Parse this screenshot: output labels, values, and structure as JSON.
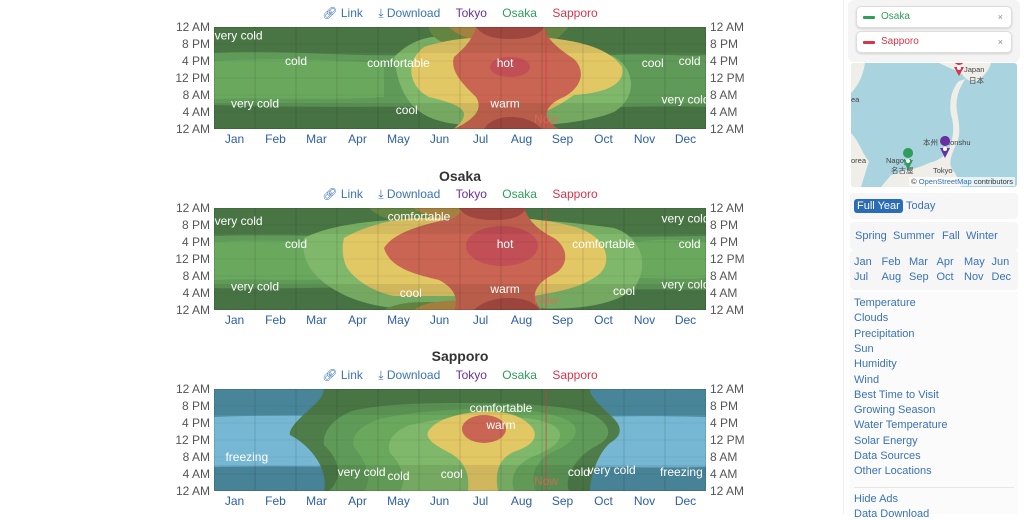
{
  "header_links": {
    "link": "Link",
    "download": "Download"
  },
  "cities": [
    "Tokyo",
    "Osaka",
    "Sapporo"
  ],
  "colors": {
    "tokyo": "#6a2f9e",
    "osaka": "#2e9e5b",
    "sapporo": "#d9344a",
    "link": "#3a72b8",
    "now": "#d9344a"
  },
  "y_axis_labels": [
    "12 AM",
    "8 PM",
    "4 PM",
    "12 PM",
    "8 AM",
    "4 AM",
    "12 AM"
  ],
  "months": [
    "Jan",
    "Feb",
    "Mar",
    "Apr",
    "May",
    "Jun",
    "Jul",
    "Aug",
    "Sep",
    "Oct",
    "Nov",
    "Dec"
  ],
  "now_label": "Now",
  "chart_data": [
    {
      "type": "heatmap",
      "title": "",
      "city": "Tokyo",
      "xlabel": "",
      "ylabel": "",
      "now_month_position": 8.1,
      "band_labels": [
        {
          "text": "very cold",
          "month": 0.6,
          "hour": 22
        },
        {
          "text": "cold",
          "month": 2.0,
          "hour": 16
        },
        {
          "text": "comfortable",
          "month": 4.5,
          "hour": 15.5
        },
        {
          "text": "hot",
          "month": 7.1,
          "hour": 15.5
        },
        {
          "text": "cool",
          "month": 10.7,
          "hour": 15.5
        },
        {
          "text": "cold",
          "month": 11.6,
          "hour": 16
        },
        {
          "text": "very cold",
          "month": 1.0,
          "hour": 6
        },
        {
          "text": "cool",
          "month": 4.7,
          "hour": 4.5
        },
        {
          "text": "warm",
          "month": 7.1,
          "hour": 6
        },
        {
          "text": "very cold",
          "month": 11.5,
          "hour": 7
        }
      ]
    },
    {
      "type": "heatmap",
      "title": "Osaka",
      "city": "Osaka",
      "xlabel": "",
      "ylabel": "",
      "now_month_position": 8.1,
      "band_labels": [
        {
          "text": "very cold",
          "month": 0.6,
          "hour": 21
        },
        {
          "text": "comfortable",
          "month": 5.0,
          "hour": 22
        },
        {
          "text": "very cold",
          "month": 11.5,
          "hour": 21.5
        },
        {
          "text": "cold",
          "month": 2.0,
          "hour": 15.5
        },
        {
          "text": "hot",
          "month": 7.1,
          "hour": 15.5
        },
        {
          "text": "comfortable",
          "month": 9.5,
          "hour": 15.5
        },
        {
          "text": "cold",
          "month": 11.6,
          "hour": 15.5
        },
        {
          "text": "very cold",
          "month": 1.0,
          "hour": 5.5
        },
        {
          "text": "cool",
          "month": 4.8,
          "hour": 4
        },
        {
          "text": "warm",
          "month": 7.1,
          "hour": 5
        },
        {
          "text": "cool",
          "month": 10.0,
          "hour": 4.5
        },
        {
          "text": "very cold",
          "month": 11.5,
          "hour": 6
        }
      ]
    },
    {
      "type": "heatmap",
      "title": "Sapporo",
      "city": "Sapporo",
      "xlabel": "",
      "ylabel": "",
      "now_month_position": 8.1,
      "band_labels": [
        {
          "text": "comfortable",
          "month": 7.0,
          "hour": 19.5
        },
        {
          "text": "warm",
          "month": 7.0,
          "hour": 15.5
        },
        {
          "text": "freezing",
          "month": 0.8,
          "hour": 8
        },
        {
          "text": "very cold",
          "month": 3.6,
          "hour": 4.5
        },
        {
          "text": "cold",
          "month": 4.5,
          "hour": 3.5
        },
        {
          "text": "cool",
          "month": 5.8,
          "hour": 4
        },
        {
          "text": "cold",
          "month": 8.9,
          "hour": 4.5
        },
        {
          "text": "very cold",
          "month": 9.7,
          "hour": 5
        },
        {
          "text": "freezing",
          "month": 11.4,
          "hour": 4.5
        }
      ]
    }
  ],
  "sidebar": {
    "city_pills": [
      {
        "name": "Osaka",
        "close": "×"
      },
      {
        "name": "Sapporo",
        "close": "×"
      }
    ],
    "map": {
      "labels": {
        "japan": "Japan",
        "nihon": "日本",
        "honshu": "本州 · Honshu",
        "nagoya": "Nagoya",
        "nagoya_jp": "名古屋",
        "tokyo": "Tokyo",
        "korea": "orea",
        "ea": "ea"
      },
      "attribution_prefix": "©",
      "attribution_link": "OpenStreetMap",
      "attribution_suffix": "contributors"
    },
    "period": {
      "full_year": "Full Year",
      "today": "Today"
    },
    "seasons": [
      "Spring",
      "Summer",
      "Fall",
      "Winter"
    ],
    "month_links": [
      "Jan",
      "Feb",
      "Mar",
      "Apr",
      "May",
      "Jun",
      "Jul",
      "Aug",
      "Sep",
      "Oct",
      "Nov",
      "Dec"
    ],
    "nav": [
      "Temperature",
      "Clouds",
      "Precipitation",
      "Sun",
      "Humidity",
      "Wind",
      "Best Time to Visit",
      "Growing Season",
      "Water Temperature",
      "Solar Energy",
      "Data Sources",
      "Other Locations"
    ],
    "nav_bottom": [
      "Hide Ads",
      "Data Download"
    ]
  }
}
